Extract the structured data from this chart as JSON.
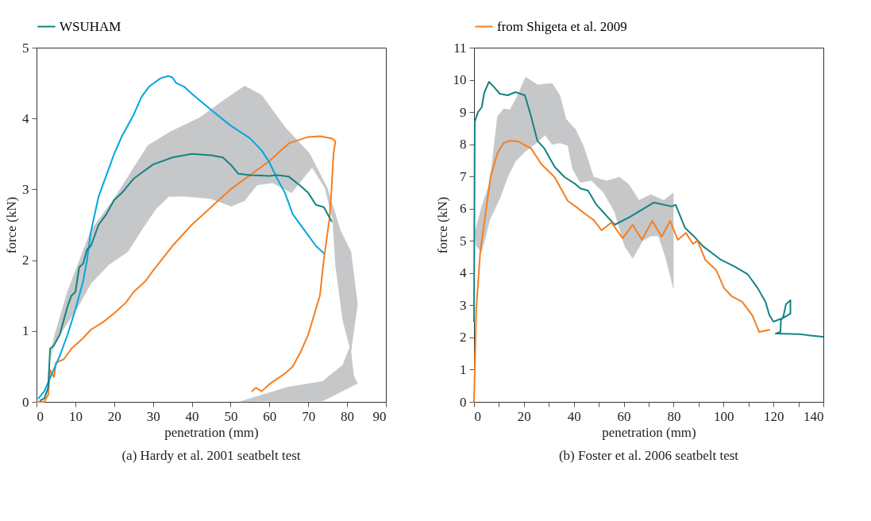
{
  "chart_data": [
    {
      "type": "line",
      "title": "(a) Hardy et al. 2001 seatbelt test",
      "xlabel": "penetration (mm)",
      "ylabel": "force (kN)",
      "xlim": [
        0,
        90
      ],
      "xticks": [
        0,
        10,
        20,
        30,
        40,
        50,
        60,
        70,
        80,
        90
      ],
      "ylim": [
        0,
        5
      ],
      "yticks": [
        0,
        1,
        2,
        3,
        4,
        5
      ],
      "legend": "top left",
      "series": [
        {
          "type": "area",
          "color": "#c6c7c9",
          "x": [
            4.4,
            8,
            14,
            20,
            28.7,
            34.7,
            42,
            48,
            53.6,
            58,
            64,
            70.3,
            74.9,
            78.3,
            81,
            82.7,
            81,
            81.7,
            82.7,
            73.7,
            58.2,
            52.2,
            58.2,
            64.9,
            73.7,
            78.9,
            80.7,
            78.9,
            77,
            76.3,
            74.3,
            71,
            65.7,
            60.8,
            56.8,
            53.6,
            50.2,
            44.8,
            38.2,
            34.1,
            30.7,
            27.5,
            23.5,
            18.7,
            14,
            10.6,
            6.6,
            4.4,
            3.6
          ],
          "values": [
            0.89,
            1.56,
            2.42,
            2.87,
            3.62,
            3.82,
            4.01,
            4.25,
            4.46,
            4.33,
            3.88,
            3.51,
            3.02,
            2.42,
            2.12,
            1.38,
            0.71,
            0.37,
            0.26,
            0.01,
            0.01,
            0,
            0.1,
            0.21,
            0.29,
            0.52,
            0.77,
            1.15,
            1.94,
            2.57,
            3.02,
            3.31,
            2.95,
            3.09,
            3.06,
            2.84,
            2.76,
            2.87,
            2.9,
            2.9,
            2.72,
            2.46,
            2.12,
            1.94,
            1.67,
            1.33,
            1.0,
            0.77,
            0.63
          ]
        },
        {
          "color": "#f47f20",
          "x": [
            0,
            2,
            3,
            3.5,
            4.5,
            5,
            7,
            9,
            12,
            14,
            17,
            20,
            23,
            25,
            28,
            30,
            35,
            40,
            45,
            50,
            55,
            60,
            63,
            65,
            70,
            73,
            76,
            77,
            76.5,
            76,
            75.5,
            74,
            73,
            70,
            68,
            66,
            64,
            60,
            58,
            56.5,
            55.5
          ],
          "values": [
            0,
            0,
            0.1,
            0.45,
            0.35,
            0.55,
            0.6,
            0.75,
            0.9,
            1.02,
            1.12,
            1.25,
            1.4,
            1.55,
            1.7,
            1.85,
            2.2,
            2.5,
            2.75,
            3.0,
            3.2,
            3.4,
            3.55,
            3.65,
            3.74,
            3.75,
            3.72,
            3.68,
            3.5,
            3.0,
            2.6,
            2.0,
            1.5,
            0.95,
            0.7,
            0.5,
            0.4,
            0.25,
            0.15,
            0.2,
            0.15
          ]
        },
        {
          "color": "#00a6e2",
          "x": [
            0.5,
            2,
            4,
            6,
            8,
            10,
            12,
            13,
            14,
            16,
            18,
            20,
            22,
            25,
            27,
            29,
            32,
            34,
            35,
            36,
            38,
            40,
            45,
            50,
            55,
            58,
            60,
            62,
            64,
            66,
            70,
            72,
            74
          ],
          "values": [
            0.05,
            0.15,
            0.4,
            0.65,
            0.95,
            1.3,
            1.7,
            2.0,
            2.4,
            2.9,
            3.2,
            3.5,
            3.75,
            4.05,
            4.3,
            4.45,
            4.57,
            4.6,
            4.58,
            4.5,
            4.45,
            4.35,
            4.12,
            3.9,
            3.72,
            3.55,
            3.38,
            3.15,
            2.95,
            2.65,
            2.35,
            2.2,
            2.1
          ]
        },
        {
          "name": "WSUHAM",
          "color": "#138382",
          "x": [
            1,
            2,
            3,
            3.5,
            4.5,
            6,
            8,
            9,
            10,
            11,
            12,
            13,
            14,
            16,
            18,
            20,
            22,
            25,
            30,
            35,
            40,
            45,
            48,
            50,
            52,
            55,
            60,
            62,
            65,
            68,
            70,
            72,
            74,
            76
          ],
          "values": [
            0.02,
            0.05,
            0.2,
            0.75,
            0.8,
            0.95,
            1.35,
            1.5,
            1.55,
            1.9,
            1.95,
            2.15,
            2.2,
            2.5,
            2.65,
            2.85,
            2.95,
            3.15,
            3.35,
            3.45,
            3.5,
            3.48,
            3.45,
            3.35,
            3.22,
            3.2,
            3.19,
            3.2,
            3.18,
            3.05,
            2.95,
            2.78,
            2.75,
            2.55
          ]
        }
      ]
    },
    {
      "type": "line",
      "title": "(b) Foster et al. 2006 seatbelt test",
      "xlabel": "penetration (mm)",
      "ylabel": "force (kN)",
      "xlim": [
        0,
        140
      ],
      "xticks": [
        0,
        {
          "value": 10,
          "label": null
        },
        20,
        {
          "value": 30,
          "label": null
        },
        40,
        {
          "value": 50,
          "label": null
        },
        60,
        {
          "value": 70,
          "label": null
        },
        80,
        {
          "value": 90,
          "label": null
        },
        100,
        {
          "value": 110,
          "label": null
        },
        120,
        {
          "value": 130,
          "label": null
        },
        140
      ],
      "ylim": [
        0,
        11
      ],
      "yticks": [
        0,
        1,
        2,
        3,
        4,
        5,
        6,
        7,
        8,
        9,
        10,
        11
      ],
      "legend": "top left",
      "series": [
        {
          "type": "area",
          "color": "#c6c7c9",
          "x": [
            0.3,
            3.1,
            6.3,
            9.4,
            11.9,
            14.4,
            17.2,
            20.7,
            25.4,
            31.3,
            34.4,
            36.9,
            40.7,
            43.8,
            47.9,
            53.2,
            58.3,
            62,
            66.1,
            70.8,
            76.1,
            79.9,
            79.9,
            76.7,
            73.9,
            70.8,
            67.6,
            63.6,
            60.4,
            56.4,
            52,
            47,
            42.6,
            39.5,
            37.6,
            34.4,
            31.3,
            28.5,
            25.1,
            20.7,
            16.6,
            13.5,
            10.3,
            6.3,
            3.1,
            0.9
          ],
          "values": [
            5.25,
            6.07,
            6.81,
            8.86,
            9.1,
            9.07,
            9.47,
            10.09,
            9.85,
            9.89,
            9.52,
            8.78,
            8.46,
            7.96,
            6.98,
            6.86,
            6.98,
            6.76,
            6.26,
            6.44,
            6.26,
            6.49,
            3.53,
            4.51,
            5.15,
            5.15,
            5.0,
            4.46,
            4.83,
            5.89,
            6.49,
            6.88,
            6.81,
            7.23,
            7.96,
            8.04,
            7.99,
            8.29,
            8.04,
            7.79,
            7.47,
            6.98,
            6.31,
            5.65,
            4.66,
            4.83
          ]
        },
        {
          "color": "#138382",
          "x": [
            0,
            0.3,
            1.6,
            3.1,
            4.1,
            6,
            8.1,
            10.3,
            13.5,
            16.6,
            20.4,
            22.9,
            25.4,
            28.2,
            32.3,
            36.3,
            40.7,
            42.6,
            45.7,
            48.9,
            53.2,
            56.4,
            62.6,
            66.7,
            72,
            79.2,
            80.8,
            84.6,
            88,
            91.8,
            99,
            104.3,
            109.6,
            113.7,
            116.8,
            118.4,
            120,
            124,
            126.8,
            126.8,
            125,
            124,
            123,
            122.8,
            120.9,
            130.3,
            139.7
          ],
          "values": [
            2.5,
            8.7,
            9.0,
            9.15,
            9.6,
            9.94,
            9.77,
            9.57,
            9.52,
            9.62,
            9.52,
            8.86,
            8.11,
            7.87,
            7.3,
            6.98,
            6.76,
            6.63,
            6.56,
            6.14,
            5.77,
            5.5,
            5.75,
            5.94,
            6.19,
            6.07,
            6.12,
            5.4,
            5.15,
            4.83,
            4.41,
            4.21,
            3.97,
            3.53,
            3.11,
            2.69,
            2.49,
            2.61,
            2.74,
            3.16,
            3.03,
            2.66,
            2.54,
            2.17,
            2.12,
            2.1,
            2.02
          ]
        },
        {
          "name": "from Shigeta et al. 2009",
          "color": "#f47f20",
          "x": [
            0,
            0.9,
            2.5,
            4.7,
            6.6,
            9.4,
            11.9,
            14.4,
            17.5,
            22.9,
            27,
            32.3,
            37.6,
            40.7,
            44.8,
            47.9,
            51.1,
            55.1,
            59.5,
            63.6,
            67.3,
            71.4,
            75.2,
            78.6,
            81.7,
            84.9,
            87.7,
            89.6,
            92.7,
            97.1,
            100.2,
            103.3,
            107.4,
            111.5,
            114.3,
            118.4
          ],
          "values": [
            0,
            2.86,
            4.66,
            5.89,
            6.98,
            7.72,
            8.04,
            8.11,
            8.09,
            7.87,
            7.38,
            6.98,
            6.24,
            6.07,
            5.82,
            5.65,
            5.33,
            5.57,
            5.08,
            5.5,
            5.03,
            5.62,
            5.13,
            5.62,
            5.03,
            5.25,
            4.91,
            5.0,
            4.41,
            4.09,
            3.53,
            3.28,
            3.11,
            2.69,
            2.17,
            2.24
          ]
        }
      ]
    }
  ]
}
